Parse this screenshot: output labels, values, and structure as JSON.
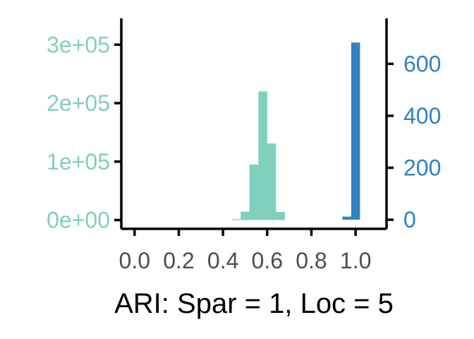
{
  "chart_data": {
    "type": "bar",
    "xlabel": "ARI: Spar = 1, Loc = 5",
    "x_ticks": [
      "0.0",
      "0.2",
      "0.4",
      "0.6",
      "0.8",
      "1.0"
    ],
    "xlim": [
      -0.06,
      1.14
    ],
    "y_left": {
      "ticks": [
        "0e+00",
        "1e+05",
        "2e+05",
        "3e+05"
      ],
      "tick_values": [
        0,
        100000,
        200000,
        300000
      ],
      "ylim": [
        -15000,
        345000
      ],
      "color": "#7fd0bd"
    },
    "y_right": {
      "ticks": [
        "0",
        "200",
        "400",
        "600"
      ],
      "tick_values": [
        0,
        200,
        400,
        600
      ],
      "ylim": [
        -35,
        775
      ],
      "color": "#3182bd"
    },
    "series": [
      {
        "axis": "left",
        "color": "#7fd0bd",
        "bin_width": 0.04,
        "bin_left_edges": [
          0.44,
          0.48,
          0.52,
          0.56,
          0.6,
          0.64
        ],
        "values": [
          1500,
          14500,
          95000,
          220000,
          131000,
          14000
        ]
      },
      {
        "axis": "right",
        "color": "#3182bd",
        "bin_width": 0.04,
        "bin_left_edges": [
          0.94,
          0.98
        ],
        "values": [
          12,
          682
        ]
      }
    ]
  }
}
